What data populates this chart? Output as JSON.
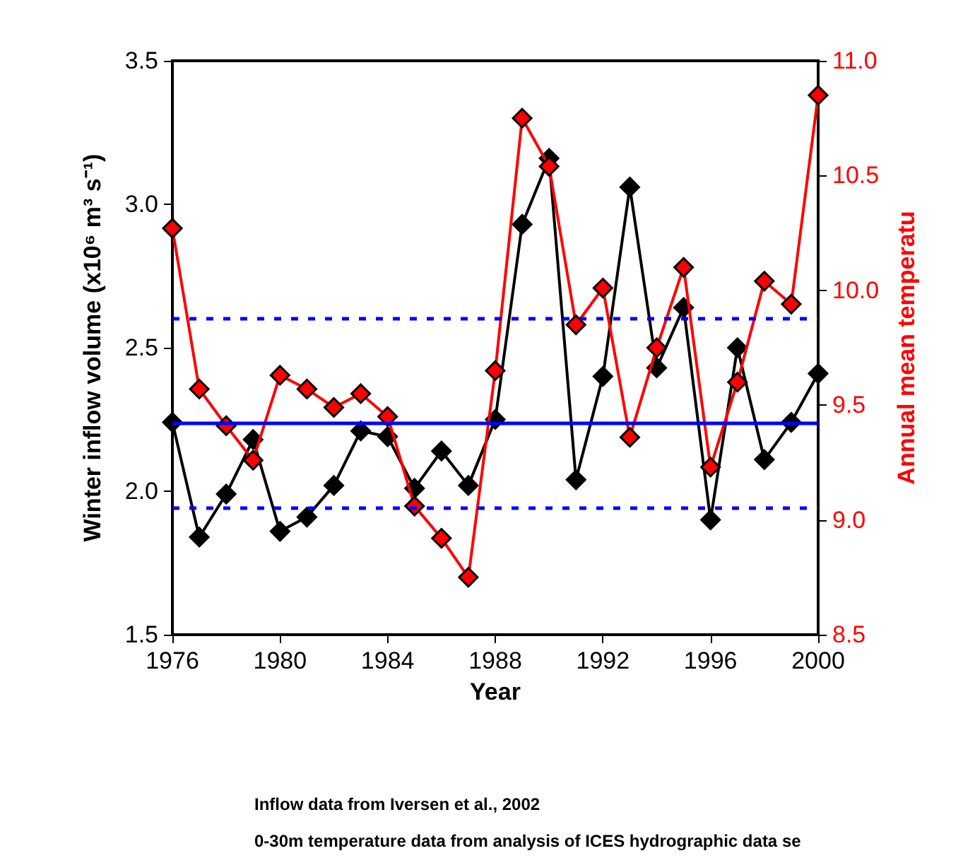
{
  "chart_data": {
    "type": "line",
    "xlabel": "Year",
    "ylabel": "Winter inflow volume (x10⁶ m³ s⁻¹)",
    "y2label": "Annual mean temperatu",
    "x": [
      1976,
      1977,
      1978,
      1979,
      1980,
      1981,
      1982,
      1983,
      1984,
      1985,
      1986,
      1987,
      1988,
      1989,
      1990,
      1991,
      1992,
      1993,
      1994,
      1995,
      1996,
      1997,
      1998,
      1999,
      2000
    ],
    "series": [
      {
        "color": "#000000",
        "values": [
          2.24,
          1.84,
          1.99,
          2.18,
          1.86,
          1.91,
          2.02,
          2.21,
          2.19,
          2.01,
          2.14,
          2.02,
          2.25,
          2.93,
          3.16,
          2.04,
          2.4,
          3.06,
          2.43,
          2.64,
          1.9,
          2.5,
          2.11,
          2.24,
          2.41
        ]
      },
      {
        "color": "#ff0000",
        "axis": "y2",
        "values": [
          10.27,
          9.57,
          9.41,
          9.26,
          9.63,
          9.57,
          9.49,
          9.55,
          9.45,
          9.06,
          8.92,
          8.75,
          9.65,
          10.75,
          10.54,
          9.85,
          10.01,
          9.36,
          9.75,
          10.1,
          9.23,
          9.6,
          10.04,
          9.94,
          10.85
        ]
      }
    ],
    "xlim": [
      1976,
      2000
    ],
    "xticks": [
      1976,
      1980,
      1984,
      1988,
      1992,
      1996,
      2000
    ],
    "ylim": [
      1.5,
      3.5
    ],
    "yticks": [
      {
        "value": 1.5,
        "label": "1.5"
      },
      {
        "value": 2,
        "label": "2.0"
      },
      {
        "value": 2.5,
        "label": "2.5"
      },
      {
        "value": 3,
        "label": "3.0"
      },
      {
        "value": 3.5,
        "label": "3.5"
      }
    ],
    "y2lim": [
      8.5,
      11
    ],
    "y2ticks": [
      8.5,
      {
        "value": 9,
        "label": "9.0"
      },
      9.5,
      {
        "value": 10,
        "label": "10.0"
      },
      10.5,
      {
        "value": 11,
        "label": "11.0"
      }
    ],
    "ref_lines": [
      {
        "axis": "y",
        "value": 2.24,
        "color": "#0000ff",
        "line_style": "solid"
      },
      {
        "axis": "y",
        "value": 2.6,
        "color": "#0000ff",
        "line_style": "dashed"
      },
      {
        "axis": "y",
        "value": 1.94,
        "color": "#0000ff",
        "line_style": "dashed"
      }
    ],
    "marker": "diamond",
    "line_style": "solid",
    "grid": false,
    "annotations": [
      "Inflow data from Iversen et al., 2002",
      "0-30m temperature data from analysis of ICES hydrographic data se"
    ]
  }
}
